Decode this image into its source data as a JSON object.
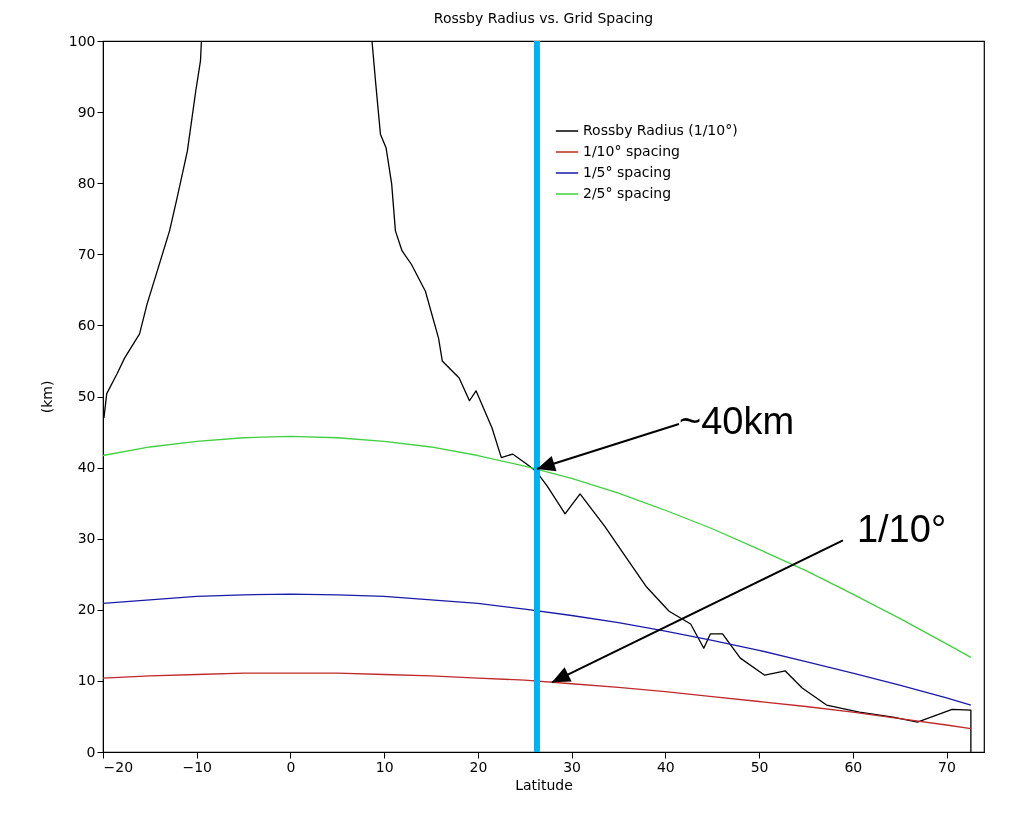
{
  "chart_data": {
    "type": "line",
    "title": "Rossby Radius vs. Grid Spacing",
    "xlabel": "Latitude",
    "ylabel": "(km)",
    "x": [
      -20,
      -15,
      -10,
      -5,
      0,
      5,
      10,
      15,
      20,
      25,
      30,
      35,
      40,
      45,
      50,
      55,
      60,
      65,
      70,
      72.6
    ],
    "series": [
      {
        "name": "Rossby Radius (1/10°)",
        "color": "#000000",
        "x": [
          -19.9,
          -19.6,
          -18.5,
          -17.7,
          -16.1,
          -15.3,
          -14.2,
          -12.9,
          -12.1,
          -11.0,
          -10.1,
          -9.6,
          -9.5,
          8.7,
          9.1,
          9.6,
          10.2,
          10.8,
          11.2,
          11.9,
          12.9,
          14.4,
          15.8,
          16.2,
          18.0,
          19.1,
          19.8,
          21.5,
          22.5,
          23.7,
          25.2,
          26.2,
          27.4,
          29.3,
          30.9,
          33.5,
          35.7,
          38.0,
          40.4,
          42.7,
          44.1,
          44.8,
          46.1,
          48.0,
          50.6,
          52.8,
          54.6,
          57.2,
          60.7,
          64.3,
          66.9,
          70.6,
          72.6,
          72.6
        ],
        "values": [
          47,
          50.4,
          53.2,
          55.4,
          58.8,
          63,
          67.7,
          73.3,
          77.9,
          84.5,
          93,
          97.2,
          100,
          100,
          94,
          86.9,
          85,
          79.9,
          73.3,
          70.5,
          68.6,
          64.8,
          58.2,
          55,
          52.6,
          49.4,
          50.8,
          45.6,
          41.4,
          41.9,
          40.5,
          39.5,
          37.4,
          33.5,
          36.3,
          31.8,
          27.6,
          23.2,
          19.8,
          18,
          14.6,
          16.6,
          16.6,
          13.2,
          10.8,
          11.4,
          9,
          6.6,
          5.6,
          4.9,
          4.2,
          6,
          5.9,
          0
        ]
      },
      {
        "name": "1/10° spacing",
        "color": "#c0282a",
        "values": [
          10.4,
          10.7,
          10.9,
          11.1,
          11.1,
          11.1,
          10.9,
          10.7,
          10.4,
          10.1,
          9.6,
          9.1,
          8.5,
          7.8,
          7.1,
          6.4,
          5.6,
          4.7,
          3.8,
          3.3
        ]
      },
      {
        "name": "1/5° spacing",
        "color": "#1a1aa8",
        "values": [
          20.9,
          21.4,
          21.9,
          22.1,
          22.2,
          22.1,
          21.9,
          21.4,
          20.9,
          20.1,
          19.2,
          18.2,
          17.0,
          15.7,
          14.3,
          12.7,
          11.1,
          9.4,
          7.6,
          6.6
        ]
      },
      {
        "name": "2/5° spacing",
        "color": "#40d040",
        "values": [
          41.7,
          42.9,
          43.7,
          44.2,
          44.4,
          44.2,
          43.7,
          42.9,
          41.7,
          40.2,
          38.5,
          36.4,
          34.0,
          31.4,
          28.5,
          25.5,
          22.2,
          18.8,
          15.2,
          13.3
        ]
      }
    ],
    "xlim": [
      -20,
      74
    ],
    "ylim": [
      0,
      100
    ],
    "xticks": [
      -20,
      -10,
      0,
      10,
      20,
      30,
      40,
      50,
      60,
      70
    ],
    "yticks": [
      0,
      10,
      20,
      30,
      40,
      50,
      60,
      70,
      80,
      90,
      100
    ],
    "ref_lines": [
      {
        "axis": "x",
        "value": 26.3,
        "color": "#00b0f0"
      }
    ],
    "annotations": [
      {
        "text": "~40km",
        "x": 26.3,
        "y": 39.8
      },
      {
        "text": "1/10°",
        "x": 27.9,
        "y": 9.8
      }
    ],
    "legend": "top right"
  }
}
